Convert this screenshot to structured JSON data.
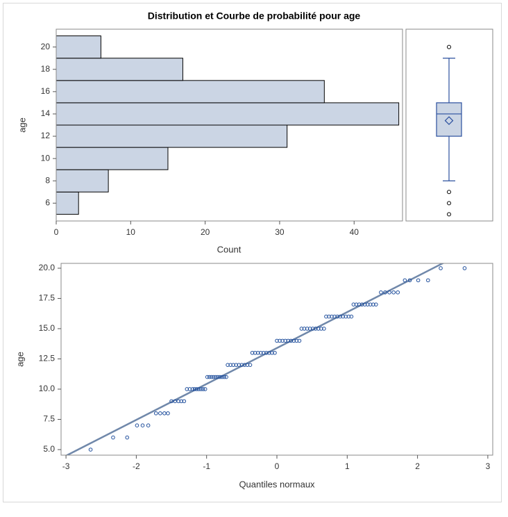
{
  "chart_data": [
    {
      "type": "histogram",
      "orientation": "horizontal",
      "title": "Distribution et Courbe de probabilité pour age",
      "xlabel": "Count",
      "ylabel": "age",
      "bins": [
        5,
        7,
        9,
        11,
        13,
        15,
        17,
        19,
        21
      ],
      "values": [
        3,
        7,
        15,
        31,
        46,
        36,
        17,
        6
      ],
      "color": "#cbd5e4",
      "xlim": [
        0,
        46.5
      ],
      "xticks": [
        0,
        10,
        20,
        30,
        40
      ],
      "ylim": [
        4.4,
        21.6
      ],
      "yticks": [
        6,
        8,
        10,
        12,
        14,
        16,
        18,
        20
      ]
    },
    {
      "type": "box",
      "whisker_low": 8,
      "q1": 12,
      "median": 14,
      "q3": 15,
      "whisker_high": 19,
      "mean": 13.4,
      "outliers": [
        5,
        6,
        7,
        20
      ],
      "color": "#2a4f9e",
      "box_color": "#cbd5e4",
      "ylim": [
        4.4,
        21.6
      ]
    },
    {
      "type": "scatter",
      "xlabel": "Quantiles normaux",
      "ylabel": "age",
      "color": "#1f4e9c",
      "reference_line": {
        "intercept": 13.4,
        "slope": 2.97,
        "color": "#7088aa"
      },
      "x": [
        -2.65,
        -2.33,
        -2.13,
        -1.99,
        -1.91,
        -1.83,
        -1.72,
        -1.66,
        -1.6,
        -1.55,
        -1.5,
        -1.45,
        -1.4,
        -1.36,
        -1.32,
        -1.28,
        -1.24,
        -1.2,
        -1.17,
        -1.14,
        -1.11,
        -1.08,
        -1.05,
        -1.02,
        -0.99,
        -0.96,
        -0.93,
        -0.9,
        -0.87,
        -0.84,
        -0.81,
        -0.78,
        -0.75,
        -0.72,
        -0.7,
        -0.66,
        -0.62,
        -0.58,
        -0.54,
        -0.5,
        -0.46,
        -0.42,
        -0.38,
        -0.35,
        -0.31,
        -0.27,
        -0.23,
        -0.19,
        -0.15,
        -0.11,
        -0.07,
        -0.03,
        0.0,
        0.04,
        0.08,
        0.12,
        0.16,
        0.2,
        0.24,
        0.28,
        0.32,
        0.35,
        0.39,
        0.43,
        0.47,
        0.51,
        0.55,
        0.59,
        0.63,
        0.67,
        0.7,
        0.74,
        0.78,
        0.82,
        0.86,
        0.9,
        0.94,
        0.98,
        1.02,
        1.06,
        1.09,
        1.13,
        1.17,
        1.21,
        1.25,
        1.29,
        1.33,
        1.37,
        1.41,
        1.48,
        1.54,
        1.6,
        1.66,
        1.72,
        1.82,
        1.89,
        2.01,
        2.15,
        2.33,
        2.67
      ],
      "values": [
        5,
        6,
        6,
        7,
        7,
        7,
        8,
        8,
        8,
        8,
        9,
        9,
        9,
        9,
        9,
        10,
        10,
        10,
        10,
        10,
        10,
        10,
        10,
        10,
        11,
        11,
        11,
        11,
        11,
        11,
        11,
        11,
        11,
        11,
        12,
        12,
        12,
        12,
        12,
        12,
        12,
        12,
        12,
        13,
        13,
        13,
        13,
        13,
        13,
        13,
        13,
        13,
        14,
        14,
        14,
        14,
        14,
        14,
        14,
        14,
        14,
        15,
        15,
        15,
        15,
        15,
        15,
        15,
        15,
        15,
        16,
        16,
        16,
        16,
        16,
        16,
        16,
        16,
        16,
        16,
        17,
        17,
        17,
        17,
        17,
        17,
        17,
        17,
        17,
        18,
        18,
        18,
        18,
        18,
        19,
        19,
        19,
        19,
        20,
        20
      ],
      "xlim": [
        -3.07,
        3.07
      ],
      "xticks": [
        -3,
        -2,
        -1,
        0,
        1,
        2,
        3
      ],
      "ylim": [
        4.54,
        20.4
      ],
      "yticks": [
        {
          "value": 5,
          "label": "5.0"
        },
        {
          "value": 7.5,
          "label": "7.5"
        },
        {
          "value": 10,
          "label": "10.0"
        },
        {
          "value": 12.5,
          "label": "12.5"
        },
        {
          "value": 15,
          "label": "15.0"
        },
        {
          "value": 17.5,
          "label": "17.5"
        },
        {
          "value": 20,
          "label": "20.0"
        }
      ]
    }
  ]
}
